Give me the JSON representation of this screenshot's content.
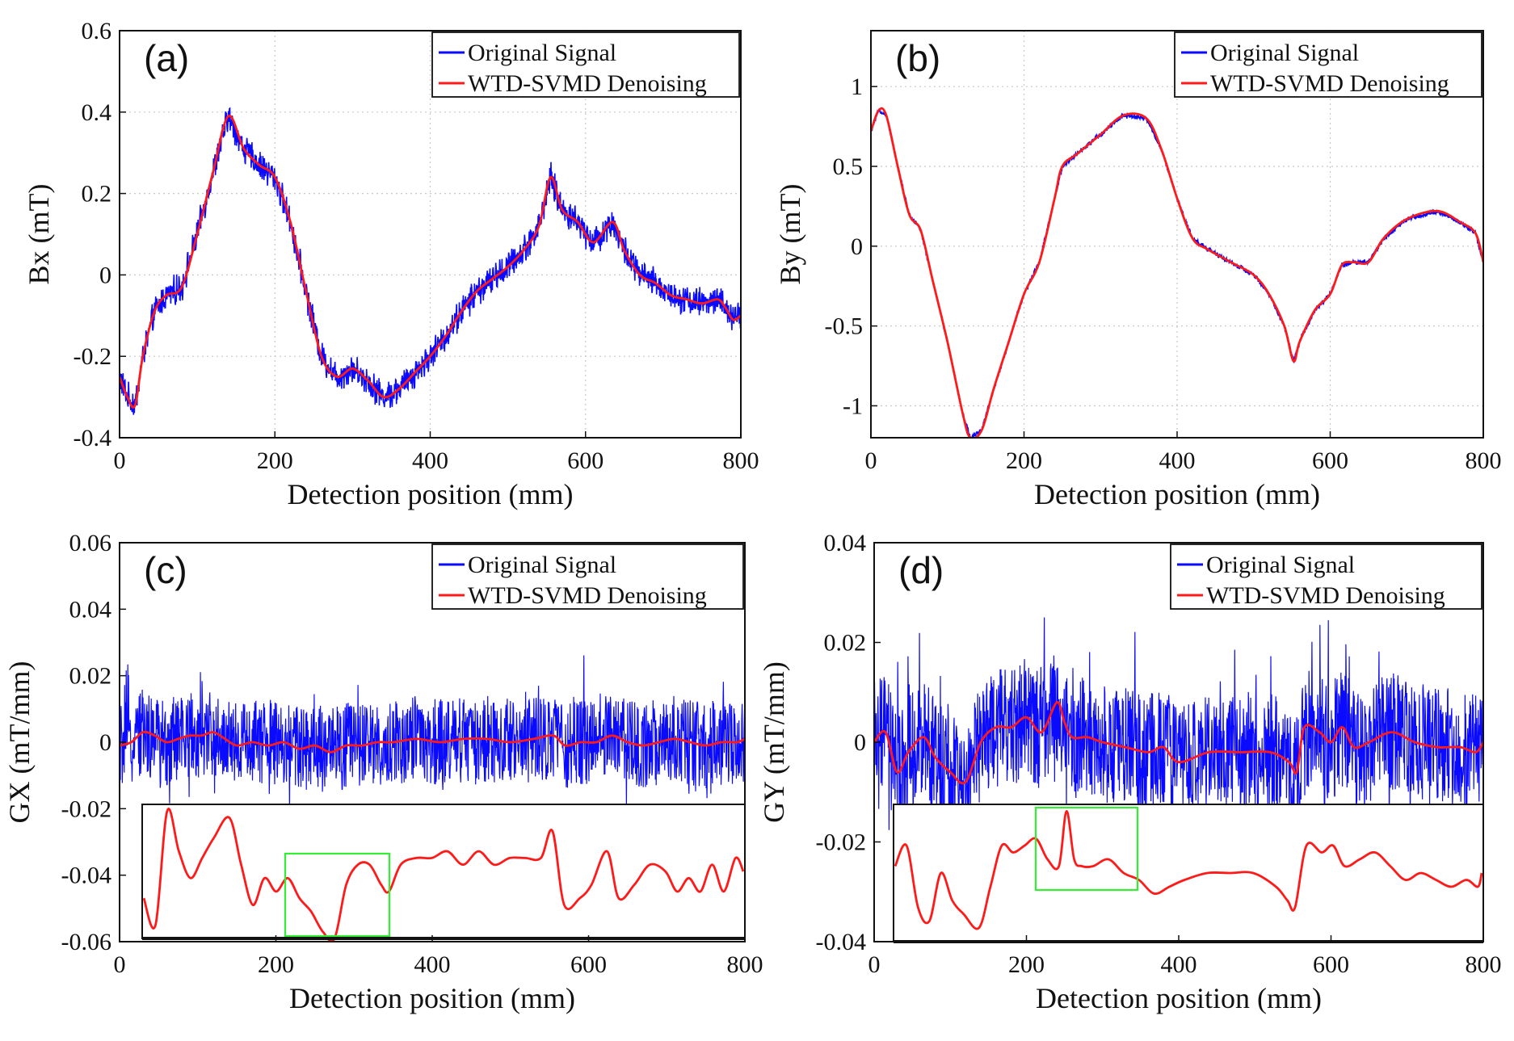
{
  "chart_data": [
    {
      "panel": "(a)",
      "type": "line",
      "xlabel": "Detection position (mm)",
      "ylabel": "Bx (mT)",
      "xlim": [
        0,
        800
      ],
      "ylim": [
        -0.4,
        0.6
      ],
      "xticks": [
        0,
        200,
        400,
        600,
        800
      ],
      "yticks": [
        -0.4,
        -0.2,
        0,
        0.2,
        0.4,
        0.6
      ],
      "grid": true,
      "legend": "top-right",
      "series": [
        {
          "name": "Original Signal",
          "color": "#0a0aff",
          "noise": 0.028
        },
        {
          "name": "WTD-SVMD Denoising",
          "color": "#ff1a1a",
          "x": [
            0,
            10,
            20,
            30,
            45,
            60,
            80,
            100,
            120,
            140,
            160,
            180,
            200,
            220,
            240,
            260,
            280,
            300,
            320,
            340,
            360,
            380,
            400,
            420,
            440,
            460,
            480,
            500,
            520,
            540,
            555,
            570,
            590,
            610,
            635,
            650,
            670,
            690,
            710,
            730,
            750,
            770,
            780,
            790,
            800
          ],
          "y": [
            -0.25,
            -0.3,
            -0.32,
            -0.2,
            -0.09,
            -0.05,
            -0.03,
            0.1,
            0.25,
            0.39,
            0.31,
            0.27,
            0.24,
            0.13,
            -0.04,
            -0.2,
            -0.25,
            -0.23,
            -0.26,
            -0.3,
            -0.28,
            -0.24,
            -0.2,
            -0.15,
            -0.09,
            -0.04,
            -0.01,
            0.02,
            0.06,
            0.12,
            0.24,
            0.16,
            0.13,
            0.08,
            0.13,
            0.06,
            0.0,
            -0.02,
            -0.05,
            -0.06,
            -0.07,
            -0.06,
            -0.08,
            -0.11,
            -0.1
          ]
        }
      ]
    },
    {
      "panel": "(b)",
      "type": "line",
      "xlabel": "Detection position (mm)",
      "ylabel": "By (mT)",
      "xlim": [
        0,
        800
      ],
      "ylim": [
        -1.2,
        1.35
      ],
      "xticks": [
        0,
        200,
        400,
        600,
        800
      ],
      "yticks": [
        -1,
        -0.5,
        0,
        0.5,
        1
      ],
      "grid": true,
      "legend": "top-right",
      "series": [
        {
          "name": "Original Signal",
          "color": "#0a0aff",
          "noise": 0.012
        },
        {
          "name": "WTD-SVMD Denoising",
          "color": "#ff1a1a",
          "x": [
            0,
            10,
            20,
            35,
            50,
            65,
            80,
            100,
            120,
            130,
            145,
            160,
            180,
            200,
            220,
            240,
            250,
            270,
            300,
            330,
            360,
            380,
            400,
            420,
            440,
            470,
            500,
            520,
            540,
            552,
            560,
            580,
            600,
            615,
            630,
            650,
            670,
            700,
            740,
            770,
            790,
            800
          ],
          "y": [
            0.72,
            0.85,
            0.82,
            0.5,
            0.2,
            0.1,
            -0.2,
            -0.6,
            -1.05,
            -1.2,
            -1.15,
            -0.9,
            -0.6,
            -0.3,
            -0.1,
            0.3,
            0.5,
            0.58,
            0.7,
            0.82,
            0.8,
            0.6,
            0.3,
            0.05,
            -0.02,
            -0.1,
            -0.18,
            -0.3,
            -0.5,
            -0.72,
            -0.6,
            -0.4,
            -0.3,
            -0.12,
            -0.1,
            -0.1,
            0.05,
            0.17,
            0.22,
            0.15,
            0.08,
            -0.1
          ]
        }
      ]
    },
    {
      "panel": "(c)",
      "type": "line",
      "xlabel": "Detection position (mm)",
      "ylabel": "GX (mT/mm)",
      "xlim": [
        0,
        800
      ],
      "ylim": [
        -0.06,
        0.06
      ],
      "xticks": [
        0,
        200,
        400,
        600,
        800
      ],
      "yticks": [
        -0.06,
        -0.04,
        -0.02,
        0,
        0.02,
        0.04,
        0.06
      ],
      "grid": false,
      "legend": "top-right",
      "series": [
        {
          "name": "Original Signal",
          "color": "#0a0aff",
          "noise": 0.013
        },
        {
          "name": "WTD-SVMD Denoising",
          "color": "#ff1a1a",
          "x": [
            0,
            15,
            30,
            45,
            60,
            75,
            90,
            105,
            120,
            135,
            150,
            170,
            190,
            210,
            230,
            250,
            270,
            290,
            310,
            330,
            350,
            380,
            410,
            440,
            470,
            500,
            530,
            555,
            570,
            590,
            610,
            630,
            650,
            670,
            690,
            710,
            730,
            750,
            770,
            790,
            800
          ],
          "y": [
            -0.001,
            0.0,
            0.003,
            0.002,
            0.0,
            0.001,
            0.002,
            0.002,
            0.003,
            0.001,
            -0.001,
            0.0,
            -0.001,
            0.0,
            -0.002,
            -0.001,
            -0.003,
            -0.001,
            -0.001,
            0.0,
            0.0,
            0.001,
            0.0,
            0.001,
            0.001,
            0.0,
            0.001,
            0.002,
            -0.001,
            0.0,
            0.0,
            0.002,
            0.0,
            -0.001,
            0.0,
            0.001,
            0.0,
            -0.001,
            0.0,
            0.0,
            0.001
          ]
        }
      ],
      "inset": {
        "color": "#ff1a1a",
        "highlight_color": "#33ee33",
        "x": [
          30,
          45,
          60,
          75,
          90,
          105,
          120,
          140,
          155,
          170,
          185,
          200,
          215,
          230,
          245,
          260,
          275,
          290,
          305,
          320,
          335,
          345,
          360,
          380,
          400,
          420,
          440,
          460,
          480,
          500,
          520,
          540,
          555,
          570,
          590,
          605,
          625,
          640,
          660,
          680,
          700,
          715,
          730,
          745,
          760,
          775,
          790,
          800
        ],
        "y": [
          0.3,
          0.1,
          0.95,
          0.65,
          0.45,
          0.6,
          0.75,
          0.9,
          0.55,
          0.25,
          0.45,
          0.35,
          0.45,
          0.3,
          0.2,
          0.05,
          0.0,
          0.4,
          0.55,
          0.55,
          0.4,
          0.35,
          0.55,
          0.6,
          0.6,
          0.65,
          0.55,
          0.65,
          0.55,
          0.6,
          0.6,
          0.6,
          0.8,
          0.25,
          0.3,
          0.4,
          0.65,
          0.3,
          0.4,
          0.55,
          0.5,
          0.35,
          0.45,
          0.35,
          0.55,
          0.35,
          0.6,
          0.5
        ]
      }
    },
    {
      "panel": "(d)",
      "type": "line",
      "xlabel": "Detection position (mm)",
      "ylabel": "GY (mT/mm)",
      "xlim": [
        0,
        800
      ],
      "ylim": [
        -0.04,
        0.04
      ],
      "xticks": [
        0,
        200,
        400,
        600,
        800
      ],
      "yticks": [
        -0.04,
        -0.02,
        0,
        0.02,
        0.04
      ],
      "grid": false,
      "legend": "top-right",
      "series": [
        {
          "name": "Original Signal",
          "color": "#0a0aff",
          "noise": 0.012
        },
        {
          "name": "WTD-SVMD Denoising",
          "color": "#ff1a1a",
          "x": [
            0,
            15,
            30,
            45,
            65,
            80,
            100,
            120,
            140,
            160,
            180,
            200,
            220,
            240,
            250,
            260,
            280,
            300,
            330,
            360,
            380,
            400,
            440,
            480,
            520,
            545,
            555,
            565,
            585,
            600,
            615,
            630,
            650,
            680,
            710,
            740,
            770,
            790,
            800
          ],
          "y": [
            0.0,
            0.002,
            -0.006,
            -0.002,
            0.001,
            -0.003,
            -0.006,
            -0.008,
            0.0,
            0.003,
            0.003,
            0.005,
            0.002,
            0.008,
            0.004,
            0.001,
            0.001,
            0.0,
            -0.001,
            -0.002,
            -0.001,
            -0.004,
            -0.002,
            -0.002,
            -0.002,
            -0.004,
            -0.006,
            0.003,
            0.002,
            0.0,
            0.003,
            -0.001,
            0.0,
            0.002,
            0.0,
            -0.001,
            -0.001,
            -0.002,
            0.0
          ]
        }
      ],
      "inset": {
        "color": "#ff1a1a",
        "highlight_color": "#33ee33",
        "x": [
          30,
          45,
          60,
          75,
          90,
          105,
          120,
          140,
          155,
          170,
          185,
          200,
          215,
          230,
          245,
          255,
          265,
          275,
          290,
          310,
          330,
          350,
          370,
          390,
          410,
          440,
          470,
          500,
          530,
          545,
          555,
          570,
          590,
          605,
          620,
          640,
          660,
          680,
          700,
          720,
          740,
          760,
          780,
          795,
          800
        ],
        "y": [
          0.55,
          0.7,
          0.25,
          0.15,
          0.5,
          0.3,
          0.2,
          0.1,
          0.4,
          0.7,
          0.65,
          0.7,
          0.75,
          0.6,
          0.55,
          0.95,
          0.6,
          0.55,
          0.55,
          0.6,
          0.5,
          0.45,
          0.35,
          0.4,
          0.45,
          0.5,
          0.5,
          0.5,
          0.4,
          0.3,
          0.25,
          0.7,
          0.65,
          0.7,
          0.55,
          0.6,
          0.65,
          0.55,
          0.45,
          0.5,
          0.45,
          0.4,
          0.45,
          0.4,
          0.5
        ]
      }
    }
  ]
}
